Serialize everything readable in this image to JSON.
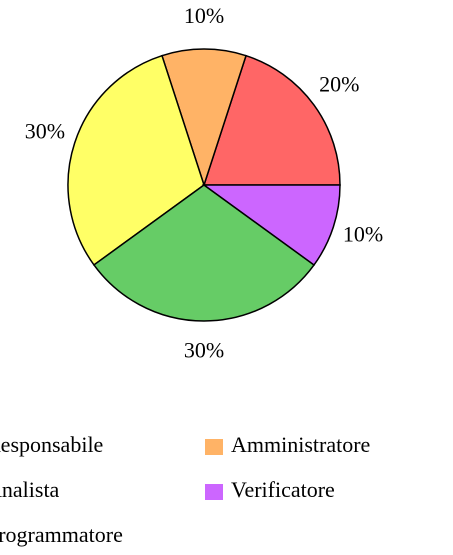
{
  "chart_data": {
    "type": "pie",
    "categories": [
      "Responsabile",
      "Amministratore",
      "Analista",
      "Programmatore",
      "Verificatore"
    ],
    "values": [
      20,
      10,
      30,
      30,
      10
    ],
    "value_labels": [
      "20%",
      "10%",
      "30%",
      "30%",
      "10%"
    ],
    "colors": [
      "#ff6666",
      "#ffb366",
      "#ffff66",
      "#66cc66",
      "#cc66ff"
    ],
    "legend_order": [
      0,
      1,
      2,
      4,
      3
    ]
  }
}
